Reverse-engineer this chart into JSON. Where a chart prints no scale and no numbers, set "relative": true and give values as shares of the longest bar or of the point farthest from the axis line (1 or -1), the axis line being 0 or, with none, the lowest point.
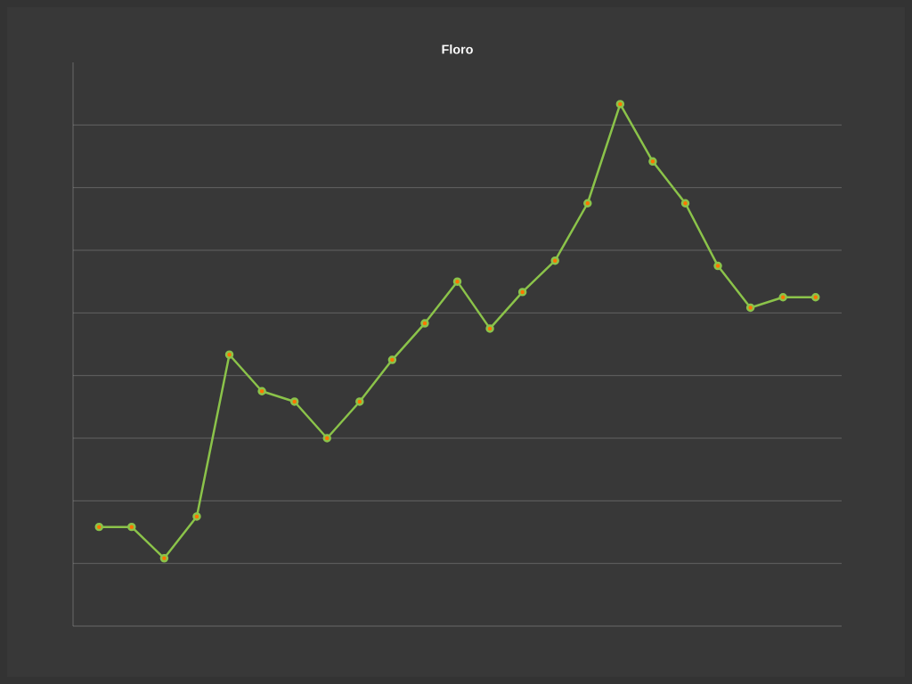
{
  "chart_data": {
    "type": "line",
    "title": "Floro",
    "relative": true,
    "categories": [
      null,
      null,
      null,
      null,
      null,
      null,
      null,
      null,
      null,
      null,
      null,
      null,
      null,
      null,
      null,
      null,
      null,
      null,
      null,
      null,
      null,
      null,
      null
    ],
    "series": [
      {
        "color": "#8bc34a",
        "values": [
          0.19,
          0.19,
          0.13,
          0.21,
          0.52,
          0.45,
          0.43,
          0.36,
          0.43,
          0.51,
          0.58,
          0.66,
          0.57,
          0.64,
          0.7,
          0.81,
          1,
          0.89,
          0.81,
          0.69,
          0.61,
          0.63,
          0.63
        ]
      }
    ],
    "grid": true,
    "marker": "circle",
    "line_style": "solid"
  }
}
